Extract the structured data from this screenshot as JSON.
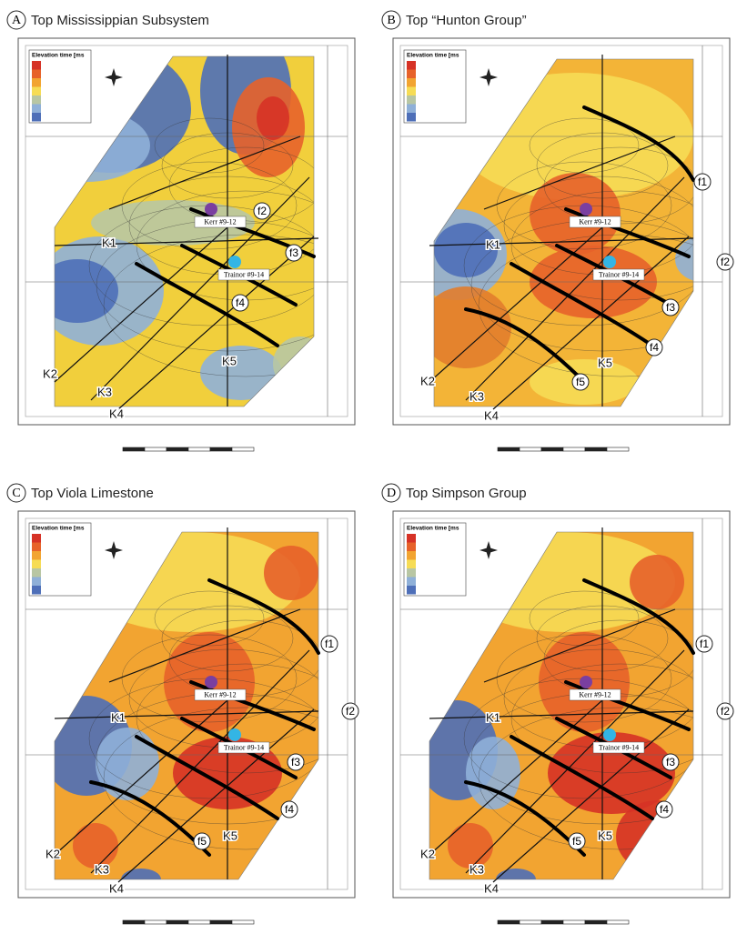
{
  "panels": [
    {
      "letter": "A",
      "title": "Top Mississippian Subsystem",
      "legend_title": "Elevation time [ms",
      "wells": [
        "Kerr #9-12",
        "Trainor #9-14"
      ],
      "lines": [
        "K1",
        "K2",
        "K3",
        "K4",
        "K5"
      ],
      "faults": [
        "f2",
        "f3",
        "f4"
      ]
    },
    {
      "letter": "B",
      "title": "Top “Hunton Group”",
      "legend_title": "Elevation time [ms",
      "wells": [
        "Kerr #9-12",
        "Trainor #9-14"
      ],
      "lines": [
        "K1",
        "K2",
        "K3",
        "K4",
        "K5"
      ],
      "faults": [
        "f1",
        "f2",
        "f3",
        "f4",
        "f5"
      ]
    },
    {
      "letter": "C",
      "title": "Top Viola Limestone",
      "legend_title": "Elevation time [ms",
      "wells": [
        "Kerr #9-12",
        "Trainor #9-14"
      ],
      "lines": [
        "K1",
        "K2",
        "K3",
        "K4",
        "K5"
      ],
      "faults": [
        "f1",
        "f2",
        "f3",
        "f4",
        "f5"
      ]
    },
    {
      "letter": "D",
      "title": "Top Simpson Group",
      "legend_title": "Elevation time [ms",
      "wells": [
        "Kerr #9-12",
        "Trainor #9-14"
      ],
      "lines": [
        "K1",
        "K2",
        "K3",
        "K4",
        "K5"
      ],
      "faults": [
        "f1",
        "f2",
        "f3",
        "f4",
        "f5"
      ]
    }
  ]
}
